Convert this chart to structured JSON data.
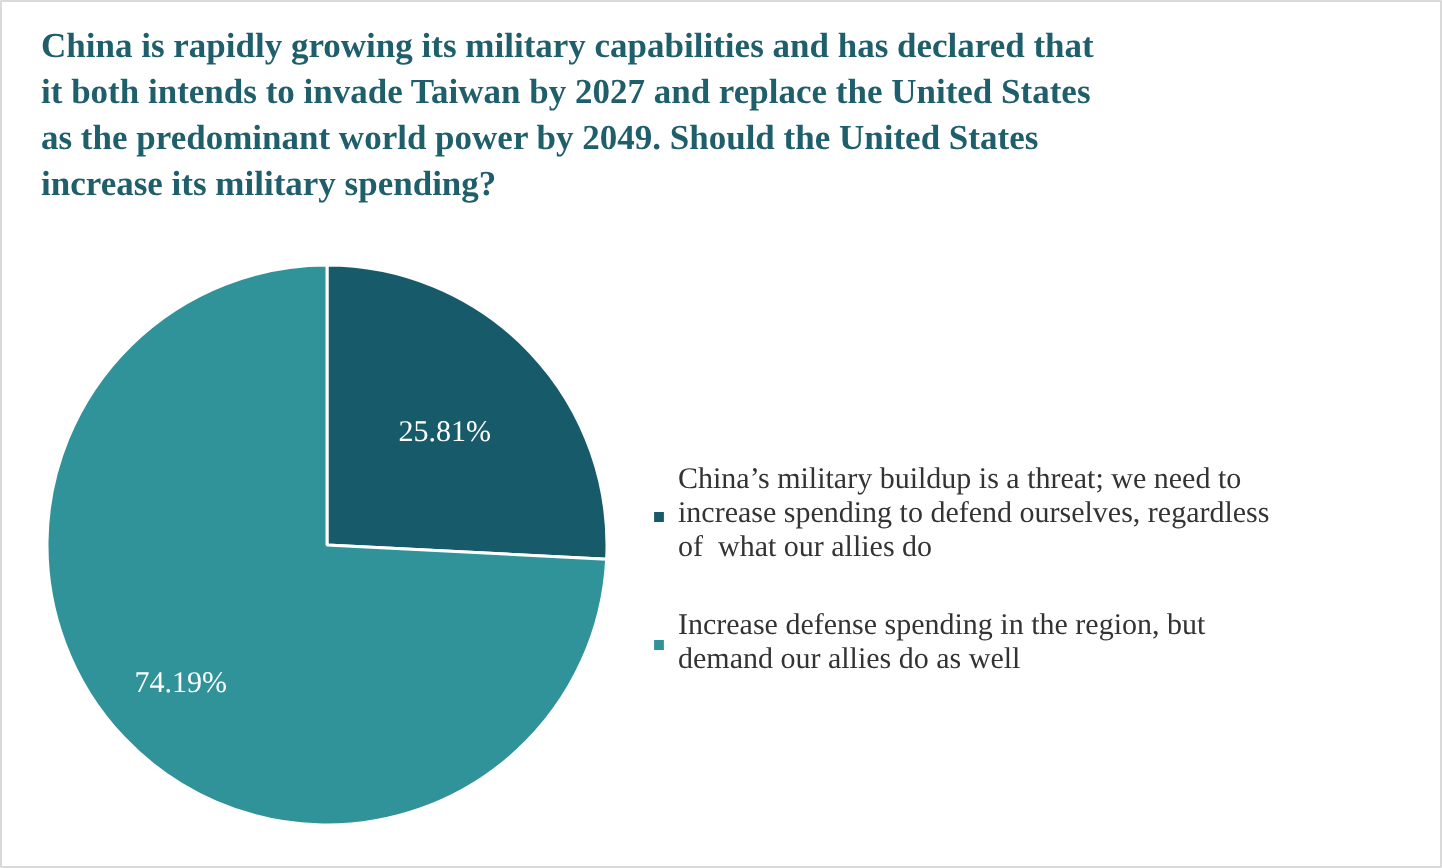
{
  "chart_data": {
    "type": "pie",
    "title": "China is rapidly growing its military capabilities and has declared that it both intends to invade Taiwan by 2027 and replace the United States as the predominant world power by 2049. Should the United States increase its military spending?",
    "categories": [
      "China’s military buildup is a threat; we need to increase spending to defend ourselves, regardless of  what our allies do",
      "Increase defense spending in the region, but demand our allies do as well"
    ],
    "values": [
      25.81,
      74.19
    ],
    "colors": [
      "#175b6b",
      "#31939a"
    ],
    "value_labels": [
      "25.81%",
      "74.19%"
    ],
    "legend": "right"
  }
}
